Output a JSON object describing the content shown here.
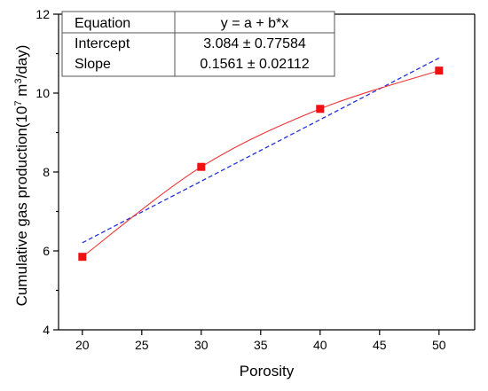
{
  "chart_data": {
    "type": "scatter",
    "xlabel": "Porosity",
    "ylabel_prefix": "Cumulative gas production(10",
    "ylabel_sup1": "7",
    "ylabel_mid": " m",
    "ylabel_sup2": "3",
    "ylabel_suffix": "/day)",
    "xlim": [
      18,
      53
    ],
    "ylim": [
      4,
      12
    ],
    "x_ticks": [
      20,
      25,
      30,
      35,
      40,
      45,
      50
    ],
    "y_ticks": [
      4,
      6,
      8,
      10,
      12
    ],
    "points": {
      "x": [
        20,
        30,
        40,
        50
      ],
      "y": [
        5.85,
        8.13,
        9.6,
        10.57
      ]
    },
    "fit_line": {
      "intercept": 3.084,
      "slope": 0.1561,
      "x_range": [
        20,
        50
      ]
    },
    "colors": {
      "points": "#ee1111",
      "smooth_curve": "#ee3333",
      "fit_line": "#2233dd"
    },
    "stats_table": [
      {
        "label": "Equation",
        "value": "y = a + b*x"
      },
      {
        "label": "Intercept",
        "value": "3.084 ± 0.77584"
      },
      {
        "label": "Slope",
        "value": "0.1561 ± 0.02112"
      }
    ]
  }
}
